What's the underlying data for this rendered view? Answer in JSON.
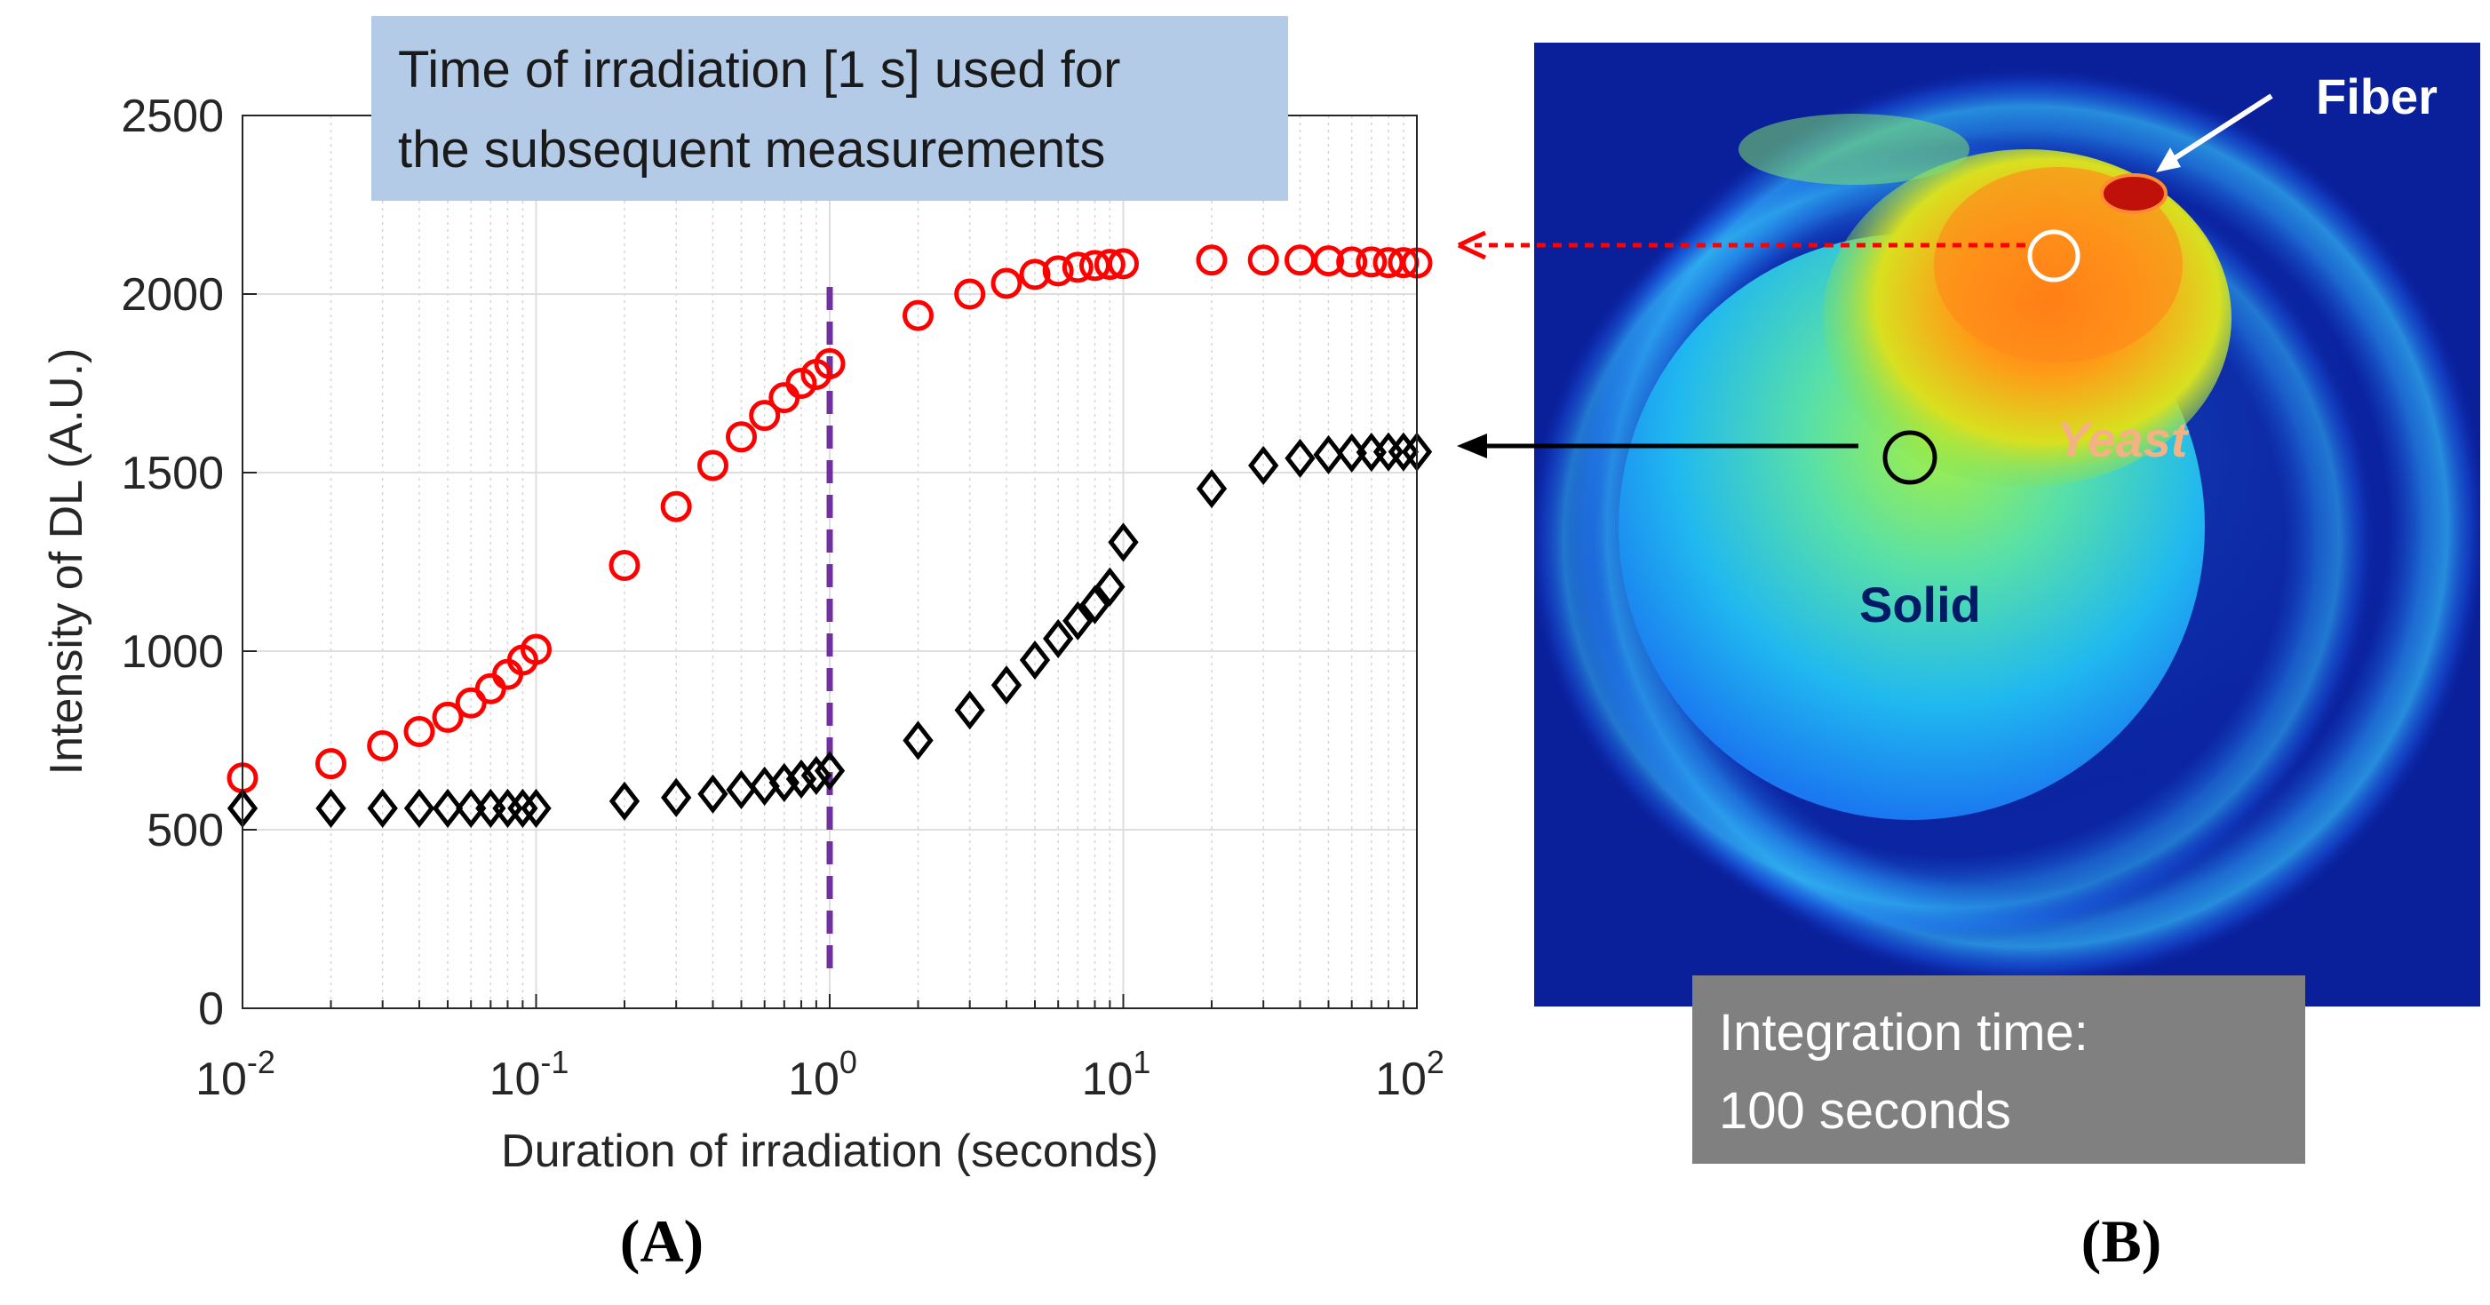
{
  "chart_data": {
    "type": "scatter",
    "xscale": "log",
    "xlim": [
      0.01,
      100
    ],
    "ylim": [
      0,
      2500
    ],
    "xlabel": "Duration of irradiation (seconds)",
    "ylabel": "Intensity of DL (A.U.)",
    "xtick_bases": [
      "10",
      "10",
      "10",
      "10",
      "10"
    ],
    "xtick_exponents": [
      "-2",
      "-1",
      "0",
      "1",
      "2"
    ],
    "xtick_values": [
      0.01,
      0.1,
      1,
      10,
      100
    ],
    "yticks": [
      0,
      500,
      1000,
      1500,
      2000,
      2500
    ],
    "ytick_labels": [
      "0",
      "500",
      "1000",
      "1500",
      "2000",
      "2500"
    ],
    "grid": true,
    "vline": {
      "x": 1,
      "color": "#7030a0",
      "style": "dashed"
    },
    "series": [
      {
        "name": "Yeast",
        "marker": "circle",
        "color": "#ff0000",
        "x": [
          0.01,
          0.02,
          0.03,
          0.04,
          0.05,
          0.06,
          0.07,
          0.08,
          0.09,
          0.1,
          0.2,
          0.3,
          0.4,
          0.5,
          0.6,
          0.7,
          0.8,
          0.9,
          1,
          2,
          3,
          4,
          5,
          6,
          7,
          8,
          9,
          10,
          20,
          30,
          40,
          50,
          60,
          70,
          80,
          90,
          100
        ],
        "y": [
          645,
          685,
          735,
          775,
          815,
          855,
          895,
          935,
          975,
          1005,
          1240,
          1405,
          1520,
          1600,
          1660,
          1710,
          1750,
          1775,
          1805,
          1940,
          2000,
          2030,
          2055,
          2065,
          2075,
          2080,
          2083,
          2085,
          2095,
          2095,
          2095,
          2093,
          2090,
          2090,
          2088,
          2088,
          2087
        ]
      },
      {
        "name": "Solid",
        "marker": "diamond",
        "color": "#000000",
        "x": [
          0.01,
          0.02,
          0.03,
          0.04,
          0.05,
          0.06,
          0.07,
          0.08,
          0.09,
          0.1,
          0.2,
          0.3,
          0.4,
          0.5,
          0.6,
          0.7,
          0.8,
          0.9,
          1,
          2,
          3,
          4,
          5,
          6,
          7,
          8,
          9,
          10,
          20,
          30,
          40,
          50,
          60,
          70,
          80,
          90,
          100
        ],
        "y": [
          560,
          560,
          560,
          560,
          560,
          560,
          560,
          560,
          560,
          560,
          580,
          590,
          600,
          612,
          622,
          632,
          642,
          652,
          665,
          750,
          835,
          905,
          975,
          1035,
          1085,
          1130,
          1180,
          1305,
          1455,
          1520,
          1540,
          1550,
          1555,
          1557,
          1558,
          1558,
          1558
        ]
      }
    ]
  },
  "callout_a": {
    "line1": "Time of irradiation [1 s] used for",
    "line2": "the subsequent measurements"
  },
  "panel_labels": {
    "a": "(A)",
    "b": "(B)"
  },
  "image_b": {
    "labels": {
      "fiber": "Fiber",
      "yeast": "Yeast",
      "solid": "Solid"
    },
    "integration": {
      "line1": "Integration time:",
      "line2": "100 seconds"
    }
  },
  "colors": {
    "callout_a_bg": "#b4cbe8",
    "integration_bg": "#808080",
    "image_bg": "#0a1f9a",
    "yeast_label": "#f4b183"
  }
}
